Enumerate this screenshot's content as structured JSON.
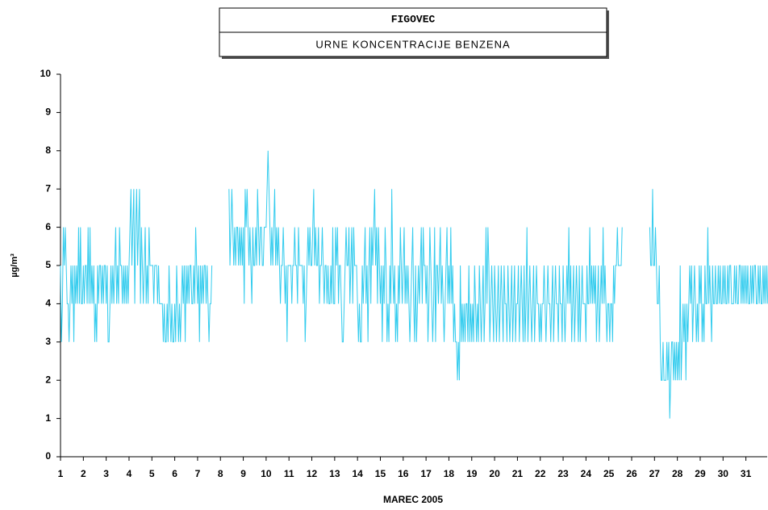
{
  "chart_data": {
    "type": "line",
    "title": "FIGOVEC",
    "subtitle": "URNE KONCENTRACIJE BENZENA",
    "x_label": "MAREC 2005",
    "y_label": "µg/m³",
    "ylim": [
      0,
      10
    ],
    "yticks": [
      0,
      1,
      2,
      3,
      4,
      5,
      6,
      7,
      8,
      9,
      10
    ],
    "grid": false,
    "categories": [
      "1",
      null,
      null,
      null,
      null,
      null,
      null,
      null,
      null,
      null,
      null,
      null,
      null,
      null,
      null,
      null,
      null,
      null,
      null,
      null,
      null,
      null,
      null,
      null,
      "2",
      null,
      null,
      null,
      null,
      null,
      null,
      null,
      null,
      null,
      null,
      null,
      null,
      null,
      null,
      null,
      null,
      null,
      null,
      null,
      null,
      null,
      null,
      null,
      "3",
      null,
      null,
      null,
      null,
      null,
      null,
      null,
      null,
      null,
      null,
      null,
      null,
      null,
      null,
      null,
      null,
      null,
      null,
      null,
      null,
      null,
      null,
      null,
      "4",
      null,
      null,
      null,
      null,
      null,
      null,
      null,
      null,
      null,
      null,
      null,
      null,
      null,
      null,
      null,
      null,
      null,
      null,
      null,
      null,
      null,
      null,
      null,
      "5",
      null,
      null,
      null,
      null,
      null,
      null,
      null,
      null,
      null,
      null,
      null,
      null,
      null,
      null,
      null,
      null,
      null,
      null,
      null,
      null,
      null,
      null,
      null,
      "6",
      null,
      null,
      null,
      null,
      null,
      null,
      null,
      null,
      null,
      null,
      null,
      null,
      null,
      null,
      null,
      null,
      null,
      null,
      null,
      null,
      null,
      null,
      null,
      "7",
      null,
      null,
      null,
      null,
      null,
      null,
      null,
      null,
      null,
      null,
      null,
      null,
      null,
      null,
      null,
      null,
      null,
      null,
      null,
      null,
      null,
      null,
      null,
      "8",
      null,
      null,
      null,
      null,
      null,
      null,
      null,
      null,
      null,
      null,
      null,
      null,
      null,
      null,
      null,
      null,
      null,
      null,
      null,
      null,
      null,
      null,
      null,
      "9",
      null,
      null,
      null,
      null,
      null,
      null,
      null,
      null,
      null,
      null,
      null,
      null,
      null,
      null,
      null,
      null,
      null,
      null,
      null,
      null,
      null,
      null,
      null,
      "10",
      null,
      null,
      null,
      null,
      null,
      null,
      null,
      null,
      null,
      null,
      null,
      null,
      null,
      null,
      null,
      null,
      null,
      null,
      null,
      null,
      null,
      null,
      null,
      "11",
      null,
      null,
      null,
      null,
      null,
      null,
      null,
      null,
      null,
      null,
      null,
      null,
      null,
      null,
      null,
      null,
      null,
      null,
      null,
      null,
      null,
      null,
      null,
      "12",
      null,
      null,
      null,
      null,
      null,
      null,
      null,
      null,
      null,
      null,
      null,
      null,
      null,
      null,
      null,
      null,
      null,
      null,
      null,
      null,
      null,
      null,
      null,
      "13",
      null,
      null,
      null,
      null,
      null,
      null,
      null,
      null,
      null,
      null,
      null,
      null,
      null,
      null,
      null,
      null,
      null,
      null,
      null,
      null,
      null,
      null,
      null,
      "14",
      null,
      null,
      null,
      null,
      null,
      null,
      null,
      null,
      null,
      null,
      null,
      null,
      null,
      null,
      null,
      null,
      null,
      null,
      null,
      null,
      null,
      null,
      null,
      "15",
      null,
      null,
      null,
      null,
      null,
      null,
      null,
      null,
      null,
      null,
      null,
      null,
      null,
      null,
      null,
      null,
      null,
      null,
      null,
      null,
      null,
      null,
      null,
      "16",
      null,
      null,
      null,
      null,
      null,
      null,
      null,
      null,
      null,
      null,
      null,
      null,
      null,
      null,
      null,
      null,
      null,
      null,
      null,
      null,
      null,
      null,
      null,
      "17",
      null,
      null,
      null,
      null,
      null,
      null,
      null,
      null,
      null,
      null,
      null,
      null,
      null,
      null,
      null,
      null,
      null,
      null,
      null,
      null,
      null,
      null,
      null,
      "18",
      null,
      null,
      null,
      null,
      null,
      null,
      null,
      null,
      null,
      null,
      null,
      null,
      null,
      null,
      null,
      null,
      null,
      null,
      null,
      null,
      null,
      null,
      null,
      "19",
      null,
      null,
      null,
      null,
      null,
      null,
      null,
      null,
      null,
      null,
      null,
      null,
      null,
      null,
      null,
      null,
      null,
      null,
      null,
      null,
      null,
      null,
      null,
      "20",
      null,
      null,
      null,
      null,
      null,
      null,
      null,
      null,
      null,
      null,
      null,
      null,
      null,
      null,
      null,
      null,
      null,
      null,
      null,
      null,
      null,
      null,
      null,
      "21",
      null,
      null,
      null,
      null,
      null,
      null,
      null,
      null,
      null,
      null,
      null,
      null,
      null,
      null,
      null,
      null,
      null,
      null,
      null,
      null,
      null,
      null,
      null,
      "22",
      null,
      null,
      null,
      null,
      null,
      null,
      null,
      null,
      null,
      null,
      null,
      null,
      null,
      null,
      null,
      null,
      null,
      null,
      null,
      null,
      null,
      null,
      null,
      "23",
      null,
      null,
      null,
      null,
      null,
      null,
      null,
      null,
      null,
      null,
      null,
      null,
      null,
      null,
      null,
      null,
      null,
      null,
      null,
      null,
      null,
      null,
      null,
      "24",
      null,
      null,
      null,
      null,
      null,
      null,
      null,
      null,
      null,
      null,
      null,
      null,
      null,
      null,
      null,
      null,
      null,
      null,
      null,
      null,
      null,
      null,
      null,
      "25",
      null,
      null,
      null,
      null,
      null,
      null,
      null,
      null,
      null,
      null,
      null,
      null,
      null,
      null,
      null,
      null,
      null,
      null,
      null,
      null,
      null,
      null,
      null,
      "26",
      null,
      null,
      null,
      null,
      null,
      null,
      null,
      null,
      null,
      null,
      null,
      null,
      null,
      null,
      null,
      null,
      null,
      null,
      null,
      null,
      null,
      null,
      null,
      "27",
      null,
      null,
      null,
      null,
      null,
      null,
      null,
      null,
      null,
      null,
      null,
      null,
      null,
      null,
      null,
      null,
      null,
      null,
      null,
      null,
      null,
      null,
      null,
      "28",
      null,
      null,
      null,
      null,
      null,
      null,
      null,
      null,
      null,
      null,
      null,
      null,
      null,
      null,
      null,
      null,
      null,
      null,
      null,
      null,
      null,
      null,
      null,
      "29",
      null,
      null,
      null,
      null,
      null,
      null,
      null,
      null,
      null,
      null,
      null,
      null,
      null,
      null,
      null,
      null,
      null,
      null,
      null,
      null,
      null,
      null,
      null,
      "30",
      null,
      null,
      null,
      null,
      null,
      null,
      null,
      null,
      null,
      null,
      null,
      null,
      null,
      null,
      null,
      null,
      null,
      null,
      null,
      null,
      null,
      null,
      null,
      "31",
      null,
      null,
      null,
      null,
      null,
      null,
      null,
      null,
      null,
      null,
      null,
      null,
      null,
      null,
      null,
      null,
      null,
      null,
      null,
      null,
      null,
      null,
      null
    ],
    "color": "#33ccee",
    "values": [
      5,
      3,
      4,
      6,
      5,
      6,
      5,
      4,
      4,
      3,
      4,
      5,
      4,
      5,
      3,
      5,
      4,
      5,
      4,
      6,
      4,
      6,
      4,
      4,
      5,
      4,
      5,
      5,
      4,
      6,
      4,
      6,
      4,
      5,
      4,
      5,
      3,
      4,
      3,
      5,
      4,
      5,
      5,
      4,
      5,
      4,
      5,
      5,
      4,
      5,
      3,
      3,
      4,
      5,
      4,
      5,
      4,
      5,
      6,
      4,
      5,
      4,
      6,
      5,
      5,
      4,
      5,
      4,
      5,
      4,
      5,
      4,
      5,
      6,
      7,
      5,
      6,
      7,
      4,
      6,
      7,
      5,
      6,
      7,
      4,
      6,
      5,
      4,
      5,
      6,
      4,
      5,
      4,
      6,
      5,
      5,
      5,
      5,
      4,
      5,
      5,
      5,
      4,
      5,
      4,
      4,
      4,
      4,
      3,
      4,
      3,
      3,
      4,
      3,
      5,
      4,
      3,
      4,
      3,
      3,
      4,
      3,
      5,
      4,
      3,
      4,
      3,
      4,
      5,
      4,
      5,
      3,
      5,
      4,
      5,
      4,
      5,
      5,
      4,
      4,
      5,
      4,
      6,
      5,
      4,
      5,
      3,
      5,
      4,
      5,
      4,
      5,
      5,
      4,
      5,
      4,
      3,
      4,
      4,
      5,
      null,
      null,
      null,
      null,
      null,
      null,
      null,
      null,
      null,
      null,
      null,
      null,
      null,
      null,
      null,
      null,
      null,
      7,
      5,
      6,
      7,
      6,
      5,
      6,
      5,
      6,
      6,
      5,
      6,
      5,
      6,
      5,
      6,
      4,
      7,
      6,
      7,
      6,
      5,
      6,
      5,
      4,
      6,
      5,
      5,
      6,
      5,
      7,
      6,
      5,
      6,
      6,
      5,
      5,
      6,
      6,
      6,
      7,
      8,
      7,
      6,
      5,
      6,
      5,
      6,
      7,
      5,
      6,
      5,
      6,
      5,
      4,
      5,
      5,
      6,
      5,
      4,
      5,
      3,
      5,
      5,
      5,
      5,
      4,
      5,
      5,
      6,
      5,
      5,
      4,
      6,
      5,
      5,
      5,
      5,
      4,
      5,
      3,
      4,
      5,
      6,
      5,
      6,
      5,
      5,
      6,
      7,
      5,
      6,
      5,
      5,
      6,
      4,
      5,
      5,
      6,
      5,
      4,
      5,
      5,
      4,
      5,
      4,
      4,
      5,
      4,
      6,
      4,
      4,
      6,
      5,
      6,
      4,
      5,
      5,
      4,
      3,
      3,
      4,
      5,
      6,
      5,
      5,
      6,
      4,
      5,
      6,
      4,
      6,
      5,
      5,
      5,
      4,
      3,
      4,
      3,
      3,
      5,
      4,
      5,
      6,
      4,
      5,
      3,
      5,
      6,
      4,
      6,
      5,
      6,
      7,
      5,
      6,
      4,
      6,
      5,
      4,
      5,
      3,
      5,
      4,
      6,
      5,
      3,
      4,
      3,
      5,
      4,
      7,
      5,
      4,
      5,
      3,
      4,
      3,
      5,
      4,
      6,
      5,
      4,
      5,
      6,
      4,
      5,
      4,
      5,
      4,
      3,
      4,
      5,
      6,
      4,
      3,
      5,
      3,
      4,
      5,
      4,
      5,
      6,
      4,
      6,
      5,
      5,
      4,
      5,
      3,
      4,
      6,
      5,
      4,
      3,
      4,
      6,
      3,
      5,
      5,
      4,
      5,
      6,
      4,
      5,
      4,
      3,
      4,
      5,
      6,
      4,
      5,
      4,
      6,
      4,
      5,
      3,
      4,
      3,
      3,
      2,
      3,
      2,
      5,
      3,
      4,
      3,
      4,
      3,
      4,
      4,
      3,
      5,
      3,
      4,
      3,
      4,
      3,
      5,
      4,
      3,
      4,
      3,
      5,
      4,
      3,
      4,
      5,
      3,
      4,
      6,
      4,
      6,
      5,
      3,
      4,
      5,
      4,
      3,
      5,
      4,
      3,
      4,
      5,
      3,
      4,
      5,
      4,
      3,
      5,
      4,
      4,
      3,
      5,
      4,
      3,
      4,
      5,
      3,
      4,
      5,
      3,
      4,
      4,
      5,
      3,
      4,
      5,
      4,
      3,
      5,
      3,
      4,
      6,
      3,
      4,
      5,
      4,
      3,
      4,
      5,
      3,
      4,
      5,
      4,
      4,
      3,
      4,
      3,
      4,
      4,
      5,
      4,
      3,
      4,
      5,
      4,
      4,
      3,
      4,
      5,
      3,
      4,
      5,
      4,
      4,
      3,
      5,
      4,
      4,
      3,
      5,
      4,
      3,
      4,
      5,
      4,
      6,
      4,
      5,
      3,
      4,
      5,
      3,
      4,
      5,
      4,
      3,
      5,
      3,
      4,
      5,
      4,
      4,
      4,
      3,
      5,
      4,
      4,
      6,
      4,
      5,
      4,
      5,
      4,
      5,
      3,
      4,
      5,
      3,
      4,
      5,
      4,
      6,
      4,
      5,
      4,
      3,
      4,
      4,
      3,
      4,
      4,
      3,
      5,
      4,
      5,
      5,
      6,
      5,
      5,
      5,
      5,
      6,
      null,
      null,
      null,
      null,
      null,
      null,
      null,
      null,
      null,
      null,
      null,
      null,
      null,
      null,
      null,
      null,
      null,
      null,
      null,
      null,
      null,
      null,
      null,
      null,
      null,
      null,
      null,
      null,
      6,
      5,
      5,
      7,
      5,
      5,
      6,
      5,
      4,
      4,
      5,
      3,
      2,
      2,
      3,
      2,
      2,
      2,
      3,
      2,
      3,
      1,
      2,
      3,
      3,
      2,
      3,
      2,
      3,
      2,
      3,
      2,
      5,
      2,
      3,
      4,
      3,
      4,
      2,
      4,
      3,
      4,
      5,
      4,
      5,
      3,
      4,
      5,
      4,
      3,
      4,
      3,
      5,
      4,
      5,
      3,
      4,
      3,
      5,
      4,
      4,
      6,
      4,
      5,
      4,
      3,
      5,
      4,
      4,
      5,
      4,
      4,
      5,
      4,
      5,
      4,
      4,
      5,
      4,
      5,
      4,
      4,
      5,
      4,
      5,
      5,
      4,
      4,
      4,
      5,
      4,
      5,
      4,
      4,
      5,
      5,
      4,
      5,
      4,
      5,
      4,
      5,
      4,
      5,
      4,
      4,
      5,
      4,
      5,
      4,
      5,
      5,
      4,
      4,
      5,
      4,
      5,
      4,
      4,
      5,
      4,
      5,
      4,
      5,
      4
    ]
  }
}
